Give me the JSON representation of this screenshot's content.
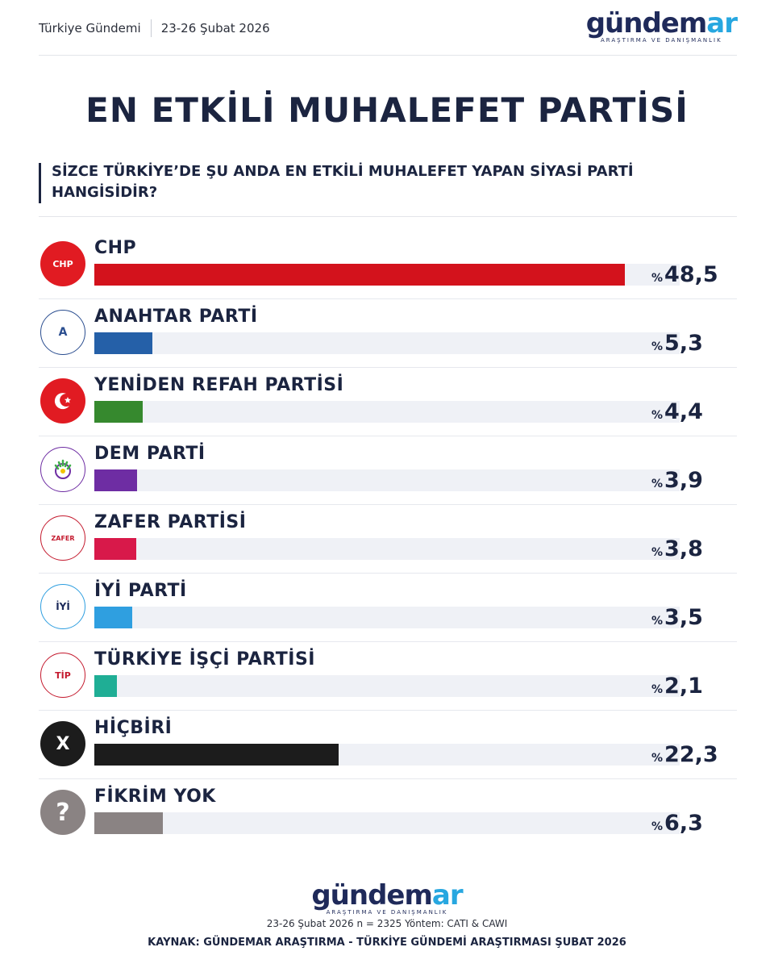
{
  "header": {
    "left_title": "Türkiye Gündemi",
    "date_range": "23-26 Şubat 2026",
    "logo_word_main": "gündem",
    "logo_word_accent": "ar",
    "logo_tagline": "ARAŞTIRMA VE DANIŞMANLIK"
  },
  "title": "EN ETKİLİ MUHALEFET PARTİSİ",
  "question": "SİZCE TÜRKİYE’DE ŞU ANDA EN ETKİLİ MUHALEFET YAPAN SİYASİ PARTİ HANGİSİDİR?",
  "chart_data": {
    "type": "bar",
    "orientation": "horizontal",
    "unit_prefix": "%",
    "xlim": [
      0,
      53.5
    ],
    "categories": [
      "CHP",
      "ANAHTAR PARTİ",
      "YENİDEN REFAH PARTİSİ",
      "DEM PARTİ",
      "ZAFER PARTİSİ",
      "İYİ PARTİ",
      "TÜRKİYE İŞÇİ PARTİSİ",
      "HİÇBİRİ",
      "FİKRİM YOK"
    ],
    "values": [
      48.5,
      5.3,
      4.4,
      3.9,
      3.8,
      3.5,
      2.1,
      22.3,
      6.3
    ],
    "value_labels": [
      "48,5",
      "5,3",
      "4,4",
      "3,9",
      "3,8",
      "3,5",
      "2,1",
      "22,3",
      "6,3"
    ],
    "colors": [
      "#d3121c",
      "#2560a8",
      "#36892e",
      "#6e2da3",
      "#d8194a",
      "#2f9fe0",
      "#1fae95",
      "#1c1c1c",
      "#8a8383"
    ],
    "icons": [
      {
        "name": "chp-logo-icon",
        "text": "CHP"
      },
      {
        "name": "anahtar-parti-logo-icon",
        "text": "A"
      },
      {
        "name": "yeniden-refah-logo-icon",
        "text": ""
      },
      {
        "name": "dem-parti-logo-icon",
        "text": ""
      },
      {
        "name": "zafer-partisi-logo-icon",
        "text": "ZAFER"
      },
      {
        "name": "iyi-parti-logo-icon",
        "text": "İYİ"
      },
      {
        "name": "tip-logo-icon",
        "text": "TİP"
      },
      {
        "name": "x-icon",
        "text": "X"
      },
      {
        "name": "question-mark-icon",
        "text": "?"
      }
    ]
  },
  "footer": {
    "logo_word_main": "gündem",
    "logo_word_accent": "ar",
    "logo_tagline": "ARAŞTIRMA VE DANIŞMANLIK",
    "method": "23-26 Şubat 2026 n = 2325 Yöntem: CATI & CAWI",
    "source": "KAYNAK: GÜNDEMAR ARAŞTIRMA - TÜRKİYE GÜNDEMİ ARAŞTIRMASI ŞUBAT 2026"
  }
}
